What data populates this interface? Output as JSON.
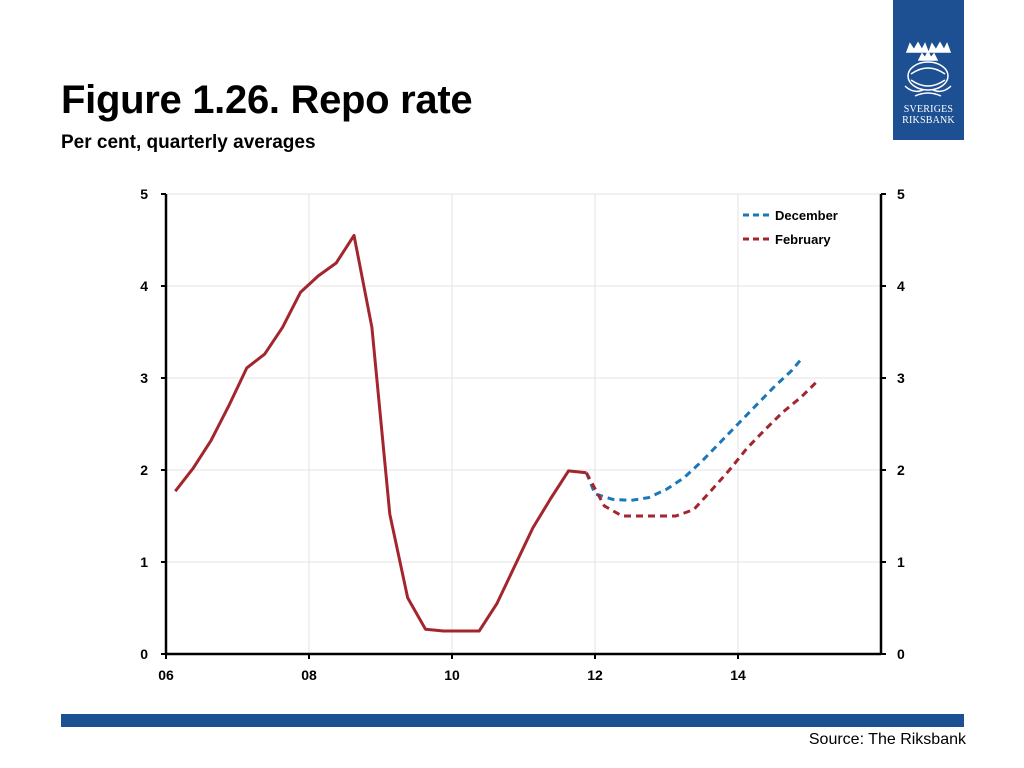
{
  "header": {
    "title": "Figure 1.26. Repo rate",
    "subtitle": "Per cent, quarterly averages"
  },
  "logo": {
    "line1": "SVERIGES",
    "line2": "RIKSBANK",
    "color": "#1d4f93"
  },
  "footer": {
    "source": "Source: The Riksbank",
    "bar_color": "#1d4f93"
  },
  "chart_data": {
    "type": "line",
    "title": "",
    "xlabel": "",
    "ylabel": "",
    "xlim": [
      2006,
      2016
    ],
    "ylim": [
      0,
      5
    ],
    "x_ticks": [
      {
        "value": 2006,
        "label": "06"
      },
      {
        "value": 2008,
        "label": "08"
      },
      {
        "value": 2010,
        "label": "10"
      },
      {
        "value": 2012,
        "label": "12"
      },
      {
        "value": 2014,
        "label": "14"
      }
    ],
    "y_ticks": [
      "0",
      "1",
      "2",
      "3",
      "4",
      "5"
    ],
    "grid": true,
    "legend_position": "top-right",
    "series": [
      {
        "name": "",
        "style": "solid",
        "color": "#a3262f",
        "points": [
          [
            2006.13,
            1.77
          ],
          [
            2006.38,
            2.02
          ],
          [
            2006.63,
            2.32
          ],
          [
            2006.88,
            2.7
          ],
          [
            2007.13,
            3.11
          ],
          [
            2007.38,
            3.26
          ],
          [
            2007.63,
            3.55
          ],
          [
            2007.88,
            3.93
          ],
          [
            2008.13,
            4.11
          ],
          [
            2008.38,
            4.25
          ],
          [
            2008.63,
            4.55
          ],
          [
            2008.88,
            3.55
          ],
          [
            2009.13,
            1.52
          ],
          [
            2009.38,
            0.61
          ],
          [
            2009.63,
            0.27
          ],
          [
            2009.88,
            0.25
          ],
          [
            2010.13,
            0.25
          ],
          [
            2010.38,
            0.25
          ],
          [
            2010.63,
            0.55
          ],
          [
            2010.88,
            0.96
          ],
          [
            2011.13,
            1.37
          ],
          [
            2011.38,
            1.69
          ],
          [
            2011.63,
            1.99
          ],
          [
            2011.88,
            1.97
          ]
        ]
      },
      {
        "name": "December",
        "style": "dashed",
        "color": "#1a77b8",
        "points": [
          [
            2011.88,
            1.97
          ],
          [
            2012.0,
            1.74
          ],
          [
            2012.25,
            1.68
          ],
          [
            2012.5,
            1.67
          ],
          [
            2012.75,
            1.7
          ],
          [
            2013.0,
            1.79
          ],
          [
            2013.25,
            1.92
          ],
          [
            2013.5,
            2.1
          ],
          [
            2013.75,
            2.3
          ],
          [
            2014.0,
            2.5
          ],
          [
            2014.25,
            2.7
          ],
          [
            2014.5,
            2.9
          ],
          [
            2014.75,
            3.08
          ],
          [
            2014.88,
            3.2
          ]
        ]
      },
      {
        "name": "February",
        "style": "dashed",
        "color": "#a3262f",
        "points": [
          [
            2011.88,
            1.97
          ],
          [
            2012.13,
            1.61
          ],
          [
            2012.38,
            1.5
          ],
          [
            2012.63,
            1.5
          ],
          [
            2012.88,
            1.5
          ],
          [
            2013.13,
            1.5
          ],
          [
            2013.38,
            1.57
          ],
          [
            2013.63,
            1.78
          ],
          [
            2013.88,
            2.0
          ],
          [
            2014.13,
            2.24
          ],
          [
            2014.38,
            2.44
          ],
          [
            2014.63,
            2.63
          ],
          [
            2014.88,
            2.79
          ],
          [
            2015.13,
            2.98
          ]
        ]
      }
    ]
  }
}
